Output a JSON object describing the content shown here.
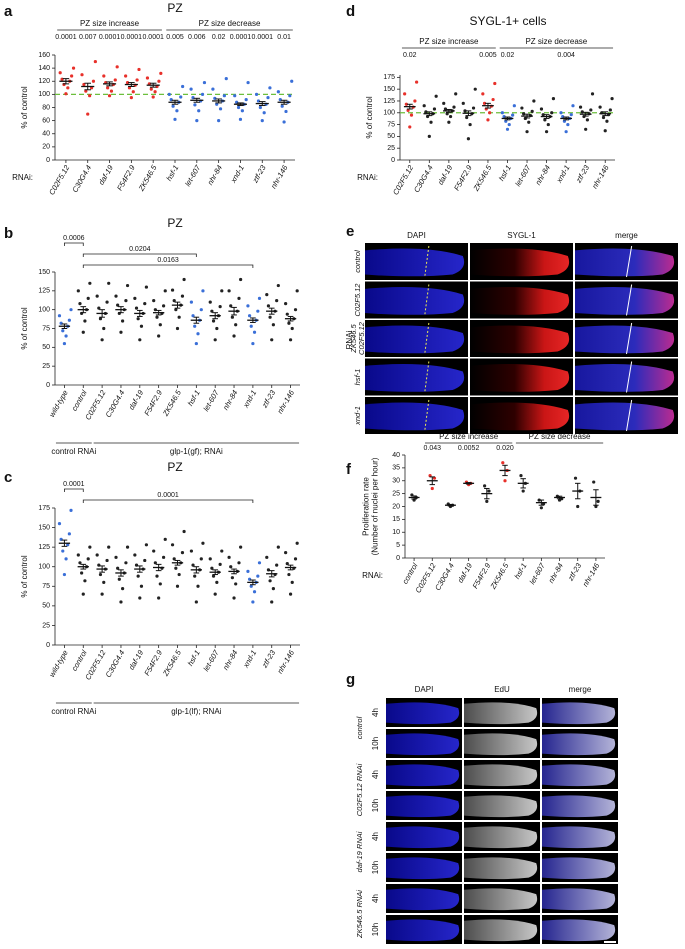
{
  "chart_data": [
    {
      "type": "dotplot",
      "panel": "a",
      "title": "PZ",
      "y_label": [
        "% of control"
      ],
      "x_label": "RNAi:",
      "categories": [
        "C02F5.12",
        "C30G4.4",
        "daf-19",
        "F54F2.9",
        "ZK546.5",
        "hsf-1",
        "let-607",
        "nhr-84",
        "xnd-1",
        "ztf-23",
        "nhr-146"
      ],
      "colors": [
        "#e8302a",
        "#e8302a",
        "#e8302a",
        "#e8302a",
        "#e8302a",
        "#3a6fd8",
        "#3a6fd8",
        "#3a6fd8",
        "#3a6fd8",
        "#3a6fd8",
        "#3a6fd8"
      ],
      "points": [
        [
          101,
          110,
          115,
          120,
          123,
          128,
          133,
          140
        ],
        [
          70,
          98,
          105,
          110,
          115,
          120,
          130,
          150
        ],
        [
          98,
          105,
          110,
          115,
          118,
          122,
          128,
          142
        ],
        [
          95,
          104,
          110,
          114,
          118,
          122,
          128,
          138
        ],
        [
          96,
          104,
          108,
          112,
          116,
          120,
          125,
          132
        ],
        [
          62,
          75,
          82,
          88,
          92,
          96,
          100,
          112
        ],
        [
          60,
          75,
          84,
          90,
          95,
          100,
          108,
          118
        ],
        [
          60,
          78,
          85,
          90,
          94,
          98,
          108,
          124
        ],
        [
          62,
          75,
          80,
          85,
          88,
          92,
          98,
          118
        ],
        [
          60,
          72,
          80,
          85,
          90,
          95,
          100,
          110
        ],
        [
          58,
          74,
          82,
          88,
          92,
          98,
          104,
          120
        ]
      ],
      "means": [
        120,
        112,
        116,
        115,
        114,
        88,
        91,
        90,
        85,
        86,
        88
      ],
      "sem": [
        4,
        5,
        3,
        3,
        3,
        3,
        3,
        3,
        2,
        3,
        3
      ],
      "p_values": [
        "0.0001",
        "0.007",
        "0.0001",
        "0.0001",
        "0.0001",
        "0.005",
        "0.006",
        "0.02",
        "0.0001",
        "0.0001",
        "0.01"
      ],
      "top_groups": [
        {
          "label": "PZ size increase",
          "span": [
            "C02F5.12",
            "ZK546.5"
          ]
        },
        {
          "label": "PZ size decrease",
          "span": [
            "hsf-1",
            "nhr-146"
          ]
        }
      ],
      "reference_line": 100,
      "reference_color": "#6cbf3c",
      "ylim": [
        0,
        160
      ],
      "yticks": [
        0,
        20,
        40,
        60,
        80,
        100,
        120,
        140,
        160
      ]
    },
    {
      "type": "dotplot",
      "panel": "b",
      "title": "PZ",
      "y_label": [
        "% of control"
      ],
      "categories": [
        "wild-type",
        "control",
        "C02F5.12",
        "C30G4.4",
        "daf-19",
        "F54F2.9",
        "ZK546.5",
        "hsf-1",
        "let-607",
        "nhr-84",
        "xnd-1",
        "ztf-23",
        "nhr-146"
      ],
      "colors": [
        "#3a6fd8",
        "#222",
        "#222",
        "#222",
        "#222",
        "#222",
        "#222",
        "#3a6fd8",
        "#222",
        "#222",
        "#3a6fd8",
        "#222",
        "#222"
      ],
      "points": [
        [
          55,
          65,
          72,
          78,
          82,
          86,
          92,
          100
        ],
        [
          70,
          85,
          95,
          100,
          108,
          115,
          125,
          135
        ],
        [
          60,
          75,
          88,
          95,
          102,
          110,
          118,
          135
        ],
        [
          70,
          85,
          95,
          100,
          106,
          112,
          118,
          132
        ],
        [
          60,
          78,
          88,
          95,
          102,
          108,
          115,
          130
        ],
        [
          65,
          80,
          90,
          95,
          100,
          105,
          112,
          125
        ],
        [
          75,
          90,
          100,
          106,
          112,
          118,
          126,
          140
        ],
        [
          55,
          68,
          78,
          86,
          92,
          100,
          110,
          125
        ],
        [
          60,
          75,
          85,
          92,
          98,
          104,
          110,
          125
        ],
        [
          65,
          80,
          90,
          98,
          105,
          115,
          125,
          140
        ],
        [
          55,
          70,
          78,
          86,
          92,
          98,
          105,
          115
        ],
        [
          60,
          80,
          90,
          98,
          105,
          112,
          120,
          132
        ],
        [
          60,
          75,
          82,
          88,
          94,
          100,
          108,
          125
        ]
      ],
      "means": [
        78,
        100,
        95,
        100,
        95,
        96,
        106,
        86,
        92,
        98,
        86,
        98,
        88
      ],
      "sem": [
        3,
        4,
        5,
        4,
        4,
        3,
        4,
        4,
        4,
        5,
        3,
        4,
        3
      ],
      "brackets": [
        {
          "label": "0.0006",
          "between": [
            "wild-type",
            "control"
          ]
        },
        {
          "label": "0.0204",
          "between": [
            "control",
            "hsf-1"
          ]
        },
        {
          "label": "0.0163",
          "between": [
            "control",
            "xnd-1"
          ]
        }
      ],
      "bottom_groups": [
        {
          "label": "control RNAi",
          "span": [
            "wild-type",
            "control"
          ]
        },
        {
          "label": "glp-1(gf); RNAi",
          "span": [
            "C02F5.12",
            "nhr-146"
          ]
        }
      ],
      "ylim": [
        0,
        150
      ],
      "yticks": [
        0,
        25,
        50,
        75,
        100,
        125,
        150
      ]
    },
    {
      "type": "dotplot",
      "panel": "c",
      "title": "PZ",
      "y_label": [
        "% of control"
      ],
      "categories": [
        "wild-type",
        "control",
        "C02F5.12",
        "C30G4.4",
        "daf-19",
        "F54F2.9",
        "ZK546.5",
        "hsf-1",
        "let-607",
        "nhr-84",
        "xnd-1",
        "ztf-23",
        "nhr-146"
      ],
      "colors": [
        "#3a6fd8",
        "#222",
        "#222",
        "#222",
        "#222",
        "#222",
        "#222",
        "#222",
        "#222",
        "#222",
        "#3a6fd8",
        "#222",
        "#222"
      ],
      "points": [
        [
          90,
          110,
          120,
          128,
          135,
          142,
          155,
          172
        ],
        [
          65,
          82,
          92,
          100,
          105,
          110,
          115,
          125
        ],
        [
          65,
          80,
          90,
          97,
          102,
          108,
          115,
          125
        ],
        [
          55,
          72,
          84,
          92,
          98,
          105,
          112,
          125
        ],
        [
          60,
          75,
          88,
          97,
          102,
          108,
          115,
          128
        ],
        [
          60,
          78,
          88,
          98,
          105,
          112,
          120,
          135
        ],
        [
          75,
          90,
          98,
          105,
          110,
          118,
          128,
          145
        ],
        [
          55,
          75,
          88,
          96,
          102,
          110,
          120,
          130
        ],
        [
          65,
          80,
          88,
          93,
          98,
          103,
          110,
          120
        ],
        [
          60,
          78,
          86,
          94,
          100,
          105,
          112,
          125
        ],
        [
          55,
          68,
          75,
          80,
          84,
          88,
          94,
          105
        ],
        [
          55,
          72,
          82,
          90,
          96,
          102,
          112,
          125
        ],
        [
          65,
          80,
          90,
          98,
          104,
          110,
          118,
          130
        ]
      ],
      "means": [
        130,
        100,
        97,
        92,
        97,
        99,
        105,
        96,
        93,
        94,
        80,
        91,
        99
      ],
      "sem": [
        4,
        3,
        4,
        4,
        4,
        4,
        3,
        4,
        3,
        3,
        3,
        4,
        3
      ],
      "brackets": [
        {
          "label": "0.0001",
          "between": [
            "wild-type",
            "control"
          ]
        },
        {
          "label": "0.0001",
          "between": [
            "control",
            "xnd-1"
          ]
        }
      ],
      "bottom_groups": [
        {
          "label": "control RNAi",
          "span": [
            "wild-type",
            "control"
          ]
        },
        {
          "label": "glp-1(lf); RNAi",
          "span": [
            "C02F5.12",
            "nhr-146"
          ]
        }
      ],
      "ylim": [
        0,
        175
      ],
      "yticks": [
        0,
        25,
        50,
        75,
        100,
        125,
        150,
        175
      ]
    },
    {
      "type": "dotplot",
      "panel": "d",
      "title": "SYGL-1+ cells",
      "y_label": [
        "% of control"
      ],
      "x_label": "RNAi:",
      "categories": [
        "C02F5.12",
        "C30G4.4",
        "daf-19",
        "F54F2.9",
        "ZK546.5",
        "hsf-1",
        "let-607",
        "nhr-84",
        "xnd-1",
        "ztf-23",
        "nhr-146"
      ],
      "colors": [
        "#e8302a",
        "#222",
        "#222",
        "#222",
        "#e8302a",
        "#3a6fd8",
        "#222",
        "#222",
        "#3a6fd8",
        "#222",
        "#222"
      ],
      "points": [
        [
          70,
          95,
          105,
          112,
          118,
          125,
          140,
          165
        ],
        [
          50,
          80,
          92,
          98,
          102,
          108,
          115,
          135
        ],
        [
          80,
          92,
          98,
          104,
          108,
          112,
          120,
          140
        ],
        [
          45,
          75,
          90,
          98,
          104,
          110,
          120,
          150
        ],
        [
          85,
          100,
          108,
          114,
          120,
          128,
          140,
          162
        ],
        [
          65,
          75,
          82,
          88,
          92,
          95,
          100,
          115
        ],
        [
          60,
          80,
          88,
          94,
          98,
          103,
          110,
          125
        ],
        [
          60,
          75,
          85,
          92,
          96,
          100,
          108,
          130
        ],
        [
          60,
          75,
          82,
          88,
          92,
          96,
          100,
          115
        ],
        [
          65,
          85,
          92,
          98,
          102,
          106,
          112,
          140
        ],
        [
          62,
          82,
          90,
          96,
          100,
          106,
          112,
          130
        ]
      ],
      "means": [
        113,
        98,
        104,
        99,
        115,
        88,
        93,
        92,
        88,
        97,
        98
      ],
      "sem": [
        5,
        4,
        3,
        5,
        5,
        3,
        4,
        4,
        3,
        4,
        4
      ],
      "p_values": [
        "0.02",
        null,
        null,
        null,
        "0.005",
        "0.02",
        null,
        null,
        "0.004",
        null,
        null
      ],
      "top_groups": [
        {
          "label": "PZ size increase",
          "span": [
            "C02F5.12",
            "ZK546.5"
          ]
        },
        {
          "label": "PZ size decrease",
          "span": [
            "hsf-1",
            "nhr-146"
          ]
        }
      ],
      "reference_line": 100,
      "reference_color": "#6cbf3c",
      "ylim": [
        0,
        180
      ],
      "yticks": [
        0,
        25,
        50,
        75,
        100,
        125,
        150,
        175
      ]
    },
    {
      "type": "dotplot",
      "panel": "f",
      "y_label": [
        "Proliferation rate",
        "(Number of nuclei per hour)"
      ],
      "x_label": "RNAi:",
      "categories": [
        "control",
        "C02F5.12",
        "C30G4.4",
        "daf-19",
        "F54F2.9",
        "ZK546.5",
        "hsf-1",
        "let-607",
        "nhr-84",
        "ztf-23",
        "nhr-146"
      ],
      "colors": [
        "#222",
        "#e8302a",
        "#222",
        "#e8302a",
        "#222",
        "#e8302a",
        "#222",
        "#222",
        "#222",
        "#222",
        "#222"
      ],
      "points": [
        [
          22.5,
          23.5,
          24.5
        ],
        [
          27,
          31,
          32
        ],
        [
          20,
          20.5,
          21
        ],
        [
          28.5,
          29,
          29.5
        ],
        [
          22,
          26,
          28
        ],
        [
          30,
          34,
          37
        ],
        [
          26,
          29,
          32
        ],
        [
          19.5,
          21,
          22.5
        ],
        [
          22.5,
          23,
          24
        ],
        [
          20,
          26,
          31
        ],
        [
          20,
          22,
          29.5
        ]
      ],
      "means": [
        23.5,
        30,
        20.5,
        29,
        25,
        34,
        29,
        21.5,
        23.5,
        26,
        23.5
      ],
      "sem": [
        0.6,
        1.5,
        0.3,
        0.3,
        2,
        2,
        1.8,
        1,
        0.5,
        3,
        3
      ],
      "p_values": [
        null,
        "0.043",
        null,
        "0.0052",
        null,
        "0.020",
        null,
        null,
        null,
        null,
        null
      ],
      "top_groups": [
        {
          "label": "PZ size increase",
          "span": [
            "C02F5.12",
            "ZK546.5"
          ]
        },
        {
          "label": "PZ size decrease",
          "span": [
            "hsf-1",
            "nhr-146"
          ]
        }
      ],
      "ylim": [
        0,
        40
      ],
      "yticks": [
        0,
        5,
        10,
        15,
        20,
        25,
        30,
        35,
        40
      ]
    }
  ],
  "image_panels": [
    {
      "panel": "e",
      "side_label": "RNAi",
      "channels": [
        "DAPI",
        "SYGL-1",
        "merge"
      ],
      "channel_colors": [
        "#2233dd",
        "#e02020",
        "#111"
      ],
      "rows": [
        [
          "control"
        ],
        [
          "C02F5.12"
        ],
        [
          "ZK546.5",
          "C02F5.12"
        ],
        [
          "hsf-1"
        ],
        [
          "xnd-1"
        ]
      ]
    },
    {
      "panel": "g",
      "channels": [
        "DAPI",
        "EdU",
        "merge"
      ],
      "channel_colors": [
        "#2233dd",
        "#333",
        "#111"
      ],
      "groups": [
        {
          "label": "control",
          "times": [
            "4h",
            "10h"
          ]
        },
        {
          "label": "C02F5.12 RNAi",
          "times": [
            "4h",
            "10h"
          ]
        },
        {
          "label": "daf-19 RNAi",
          "times": [
            "4h",
            "10h"
          ]
        },
        {
          "label": "ZK546.5 RNAi",
          "times": [
            "4h",
            "10h"
          ]
        }
      ]
    }
  ]
}
